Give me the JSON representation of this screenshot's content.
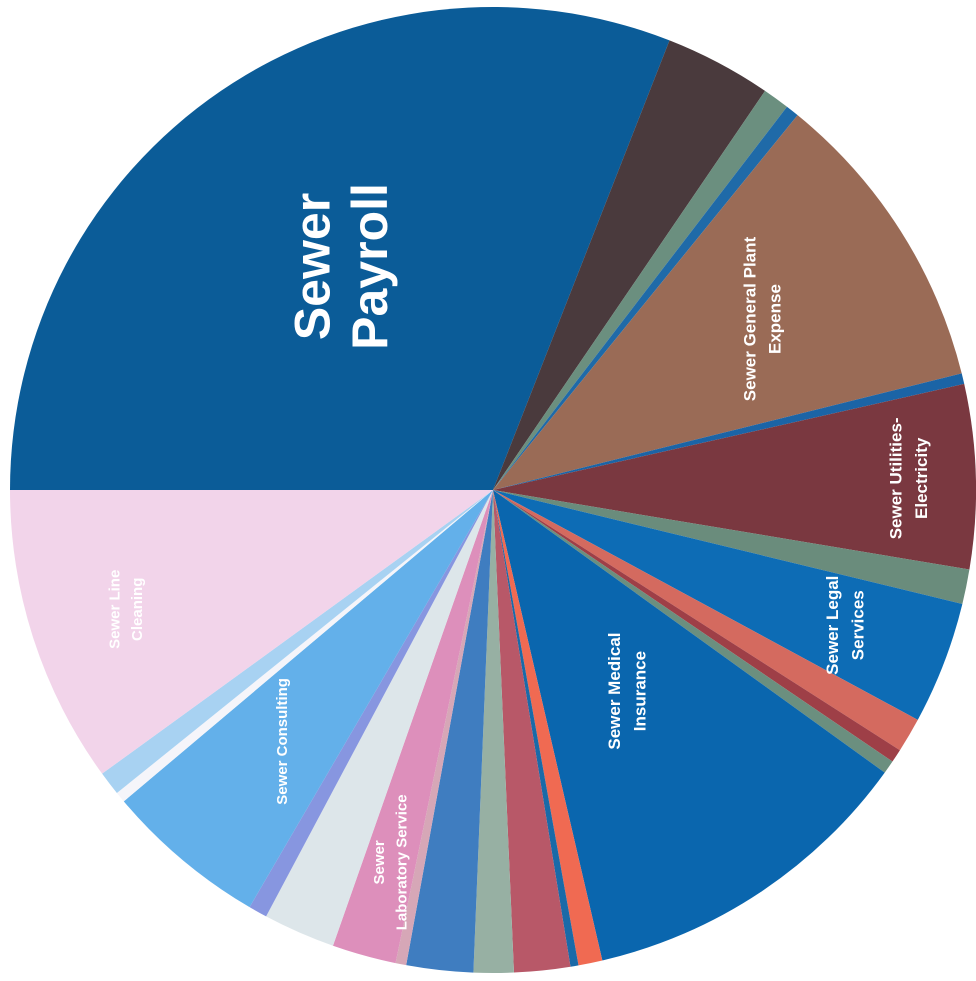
{
  "chart_data": {
    "type": "pie",
    "title": "",
    "slices": [
      {
        "label": "Sewer Payroll",
        "value": 34.7,
        "color": "#0b5c98"
      },
      {
        "label": "",
        "value": 4.0,
        "color": "#4a3a3d"
      },
      {
        "label": "",
        "value": 1.0,
        "color": "#6b8f7f"
      },
      {
        "label": "",
        "value": 0.5,
        "color": "#1f6aa8"
      },
      {
        "label": "Sewer General Plant Expense",
        "value": 11.5,
        "color": "#9a6b56"
      },
      {
        "label": "",
        "value": 0.4,
        "color": "#1b64a6"
      },
      {
        "label": "Sewer Utilities-Electricity",
        "value": 6.9,
        "color": "#7a3840"
      },
      {
        "label": "",
        "value": 1.3,
        "color": "#6a8c7c"
      },
      {
        "label": "Sewer Legal Services",
        "value": 4.6,
        "color": "#0d6cb5"
      },
      {
        "label": "",
        "value": 1.3,
        "color": "#d46a5f"
      },
      {
        "label": "",
        "value": 0.5,
        "color": "#9e3f47"
      },
      {
        "label": "",
        "value": 0.5,
        "color": "#6b8f7f"
      },
      {
        "label": "Sewer Medical Insurance",
        "value": 12.8,
        "color": "#0a66ae"
      },
      {
        "label": "",
        "value": 0.9,
        "color": "#f06a52"
      },
      {
        "label": "",
        "value": 0.3,
        "color": "#1a6aa8"
      },
      {
        "label": "",
        "value": 2.1,
        "color": "#b85868"
      },
      {
        "label": "",
        "value": 1.5,
        "color": "#97b0a3"
      },
      {
        "label": "",
        "value": 2.5,
        "color": "#3f7dc0"
      },
      {
        "label": "",
        "value": 0.4,
        "color": "#d6a7b7"
      },
      {
        "label": "Sewer Laboratory Service",
        "value": 2.4,
        "color": "#dd8fbb"
      },
      {
        "label": "",
        "value": 2.7,
        "color": "#dde6ea"
      },
      {
        "label": "",
        "value": 0.7,
        "color": "#8796e0"
      },
      {
        "label": "Sewer Consulting",
        "value": 6.1,
        "color": "#63b0ea"
      },
      {
        "label": "",
        "value": 0.4,
        "color": "#f5f5fa"
      },
      {
        "label": "",
        "value": 0.9,
        "color": "#a8d2f2"
      },
      {
        "label": "Sewer Line Cleaning",
        "value": 11.2,
        "color": "#f2d4ea"
      }
    ]
  }
}
